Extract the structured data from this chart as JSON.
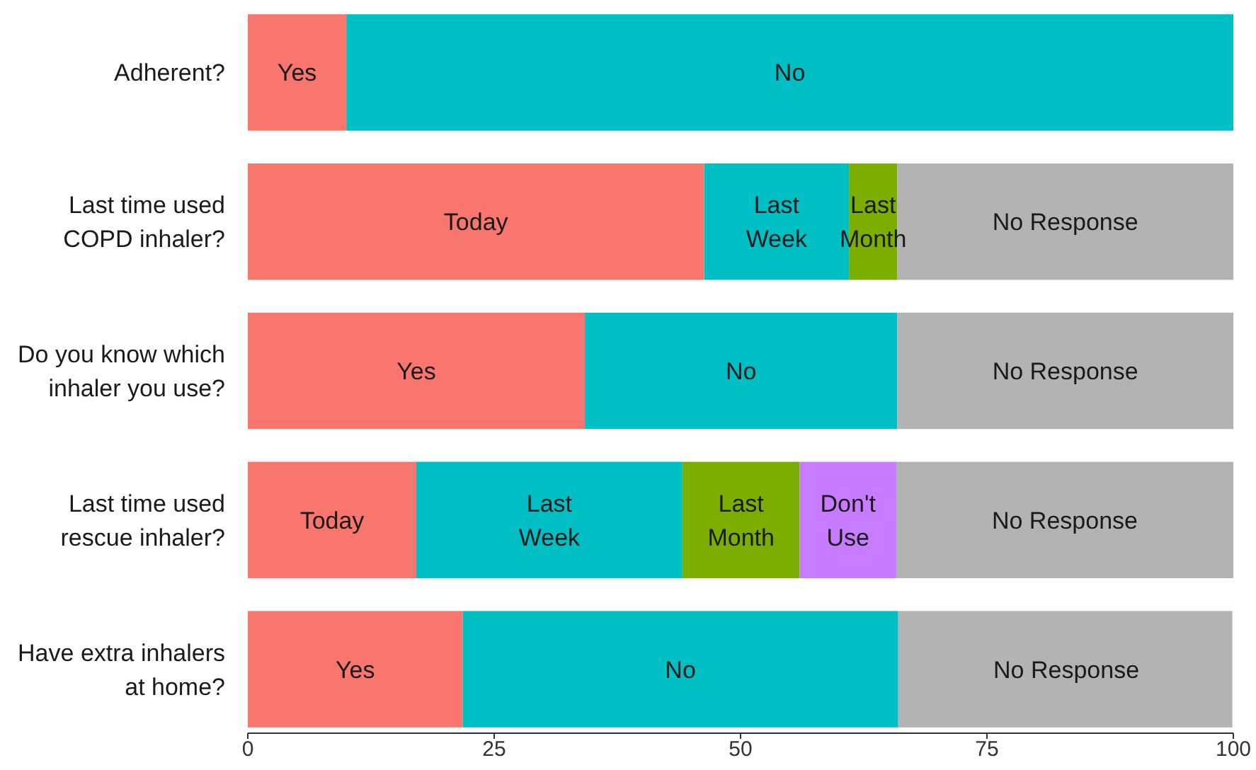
{
  "chart_data": {
    "type": "bar",
    "orientation": "horizontal",
    "stacked": true,
    "categories": [
      "Adherent?",
      "Last time used\nCOPD inhaler?",
      "Do you know which\ninhaler you use?",
      "Last time used\nrescue inhaler?",
      "Have extra inhalers\nat home?"
    ],
    "series": [
      {
        "color": "#f8766d",
        "values": [
          10,
          46.3,
          34.2,
          17.1,
          21.8
        ]
      },
      {
        "color": "#00bfc4",
        "values": [
          90,
          14.7,
          31.7,
          27,
          44.2
        ]
      },
      {
        "color": "#7cae00",
        "values": [
          null,
          4.9,
          null,
          11.9,
          null
        ]
      },
      {
        "color": "#c77cff",
        "values": [
          null,
          null,
          null,
          9.8,
          null
        ]
      },
      {
        "color": "#b3b3b3",
        "values": [
          null,
          34.1,
          34.1,
          34.2,
          33.9
        ]
      }
    ],
    "xlim": [
      0,
      100
    ],
    "xticks": [
      0,
      25,
      50,
      75,
      100
    ],
    "grid": false,
    "annotations": [
      {
        "text": "Yes",
        "x": 5,
        "y": "Adherent?"
      },
      {
        "text": "No",
        "x": 55,
        "y": "Adherent?"
      },
      {
        "text": "Today",
        "x": 23.15,
        "y": "Last time used\nCOPD inhaler?"
      },
      {
        "text": "Last\nWeek",
        "x": 53.65,
        "y": "Last time used\nCOPD inhaler?"
      },
      {
        "text": "Last\nMonth",
        "x": 63.45,
        "y": "Last time used\nCOPD inhaler?"
      },
      {
        "text": "No Response",
        "x": 82.95,
        "y": "Last time used\nCOPD inhaler?"
      },
      {
        "text": "Yes",
        "x": 17.1,
        "y": "Do you know which\ninhaler you use?"
      },
      {
        "text": "No",
        "x": 50.05,
        "y": "Do you know which\ninhaler you use?"
      },
      {
        "text": "No Response",
        "x": 82.95,
        "y": "Do you know which\ninhaler you use?"
      },
      {
        "text": "Today",
        "x": 8.55,
        "y": "Last time used\nrescue inhaler?"
      },
      {
        "text": "Last\nWeek",
        "x": 30.6,
        "y": "Last time used\nrescue inhaler?"
      },
      {
        "text": "Last\nMonth",
        "x": 50.05,
        "y": "Last time used\nrescue inhaler?"
      },
      {
        "text": "Don't\nUse",
        "x": 60.9,
        "y": "Last time used\nrescue inhaler?"
      },
      {
        "text": "No Response",
        "x": 82.9,
        "y": "Last time used\nrescue inhaler?"
      },
      {
        "text": "Yes",
        "x": 10.9,
        "y": "Have extra inhalers\nat home?"
      },
      {
        "text": "No",
        "x": 43.9,
        "y": "Have extra inhalers\nat home?"
      },
      {
        "text": "No Response",
        "x": 83.05,
        "y": "Have extra inhalers\nat home?"
      }
    ]
  }
}
